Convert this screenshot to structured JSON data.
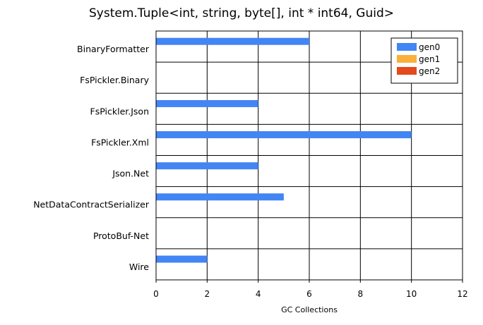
{
  "chart_data": {
    "type": "bar",
    "orientation": "horizontal",
    "title": "System.Tuple<int, string, byte[], int * int64, Guid>",
    "xlabel": "GC Collections",
    "ylabel": "",
    "categories": [
      "BinaryFormatter",
      "FsPickler.Binary",
      "FsPickler.Json",
      "FsPickler.Xml",
      "Json.Net",
      "NetDataContractSerializer",
      "ProtoBuf-Net",
      "Wire"
    ],
    "series": [
      {
        "name": "gen0",
        "color": "#4285f4",
        "values": [
          6,
          0,
          4,
          10,
          4,
          5,
          0,
          2
        ]
      },
      {
        "name": "gen1",
        "color": "#fbb03b",
        "values": [
          0,
          0,
          0,
          0,
          0,
          0,
          0,
          0
        ]
      },
      {
        "name": "gen2",
        "color": "#e34a1c",
        "values": [
          0,
          0,
          0,
          0,
          0,
          0,
          0,
          0
        ]
      }
    ],
    "xlim": [
      0,
      12
    ],
    "xticks": [
      0,
      2,
      4,
      6,
      8,
      10,
      12
    ],
    "grid": true,
    "legend_position": "top-right"
  }
}
